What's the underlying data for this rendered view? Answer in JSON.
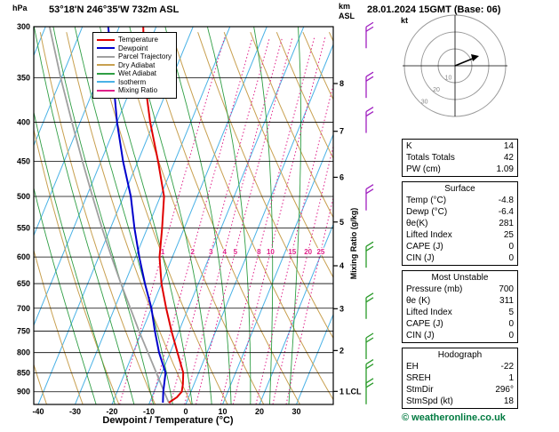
{
  "header": {
    "pressure_unit": "hPa",
    "station_title": "53°18'N 246°35'W 732m ASL",
    "datetime_title": "28.01.2024 15GMT (Base: 06)",
    "km_label": "km",
    "asl_label": "ASL"
  },
  "footer": {
    "copyright": "© weatheronline.co.uk"
  },
  "legend": {
    "items": [
      {
        "label": "Temperature",
        "color": "#e00000"
      },
      {
        "label": "Dewpoint",
        "color": "#0000cc"
      },
      {
        "label": "Parcel Trajectory",
        "color": "#a0a0a0"
      },
      {
        "label": "Dry Adiabat",
        "color": "#c8a050"
      },
      {
        "label": "Wet Adiabat",
        "color": "#2f9e44"
      },
      {
        "label": "Isotherm",
        "color": "#4ab2e6"
      },
      {
        "label": "Mixing Ratio",
        "color": "#e0218a"
      }
    ]
  },
  "axes": {
    "x_label": "Dewpoint / Temperature (°C)",
    "mixing_ratio_axis_label": "Mixing Ratio (g/kg)",
    "pressure_ticks": [
      300,
      350,
      400,
      450,
      500,
      550,
      600,
      650,
      700,
      750,
      800,
      850,
      900
    ],
    "temperature_ticks": [
      -40,
      -30,
      -20,
      -10,
      0,
      10,
      20,
      30
    ],
    "km_ticks": [
      8,
      7,
      6,
      5,
      4,
      3,
      2,
      1
    ],
    "lcl_label": "LCL"
  },
  "hodograph": {
    "unit_label": "kt",
    "ring_values": [
      10,
      20,
      30
    ]
  },
  "chart_data": {
    "type": "line",
    "subtype": "skew-t-log-p sounding",
    "title": "53°18'N 246°35'W 732m ASL",
    "xlabel": "Dewpoint / Temperature (°C)",
    "ylabel": "hPa",
    "xlim": [
      -40,
      35
    ],
    "pressure_top": 300,
    "pressure_bottom": 935,
    "isotherm_step": 10,
    "dry_adiabats_K": [
      240,
      250,
      260,
      270,
      280,
      290,
      300,
      310,
      320,
      330,
      340,
      350,
      360,
      370,
      380,
      390,
      400,
      410,
      420,
      430,
      440
    ],
    "wet_adiabats_C": [
      -20,
      -15,
      -10,
      -5,
      0,
      5,
      10,
      15,
      20,
      25,
      30
    ],
    "mixing_ratio_lines": [
      1,
      2,
      3,
      4,
      5,
      8,
      10,
      15,
      20,
      25
    ],
    "mixing_ratio_label_pressure": 590,
    "style": {
      "isotherm": "#4ab2e6",
      "dry_adiabat": "#c8a050",
      "wet_adiabat": "#2f9e44",
      "mixing_ratio": "#e0218a",
      "grid": "#000000"
    },
    "series": [
      {
        "name": "Parcel Trajectory",
        "color": "#a0a0a0",
        "width": 1.8,
        "points": [
          [
            930,
            -4.8
          ],
          [
            900,
            -7.3
          ],
          [
            850,
            -11.5
          ],
          [
            800,
            -16.0
          ],
          [
            750,
            -20.8
          ],
          [
            700,
            -25.7
          ],
          [
            650,
            -31.0
          ],
          [
            600,
            -36.5
          ],
          [
            550,
            -42.3
          ],
          [
            500,
            -48.4
          ],
          [
            450,
            -55.0
          ],
          [
            400,
            -62.2
          ],
          [
            350,
            -70.2
          ],
          [
            300,
            -78.9
          ]
        ]
      },
      {
        "name": "Dewpoint",
        "color": "#0000cc",
        "width": 2,
        "points": [
          [
            930,
            -6.4
          ],
          [
            900,
            -7.5
          ],
          [
            850,
            -9.0
          ],
          [
            800,
            -13.0
          ],
          [
            750,
            -16.5
          ],
          [
            700,
            -20.0
          ],
          [
            650,
            -24.5
          ],
          [
            600,
            -29.0
          ],
          [
            550,
            -33.5
          ],
          [
            500,
            -38.0
          ],
          [
            450,
            -44.0
          ],
          [
            400,
            -50.0
          ],
          [
            350,
            -56.0
          ],
          [
            300,
            -63.0
          ]
        ]
      },
      {
        "name": "Temperature",
        "color": "#e00000",
        "width": 2,
        "points": [
          [
            930,
            -4.8
          ],
          [
            915,
            -3.2
          ],
          [
            900,
            -2.5
          ],
          [
            880,
            -3.0
          ],
          [
            850,
            -4.2
          ],
          [
            800,
            -8.0
          ],
          [
            750,
            -12.0
          ],
          [
            700,
            -16.0
          ],
          [
            650,
            -20.0
          ],
          [
            600,
            -23.5
          ],
          [
            550,
            -26.0
          ],
          [
            500,
            -29.0
          ],
          [
            450,
            -34.5
          ],
          [
            400,
            -41.0
          ],
          [
            350,
            -47.5
          ],
          [
            300,
            -53.5
          ]
        ]
      }
    ],
    "winds": [
      {
        "pressure": 310,
        "color": "#a020c0"
      },
      {
        "pressure": 360,
        "color": "#a020c0"
      },
      {
        "pressure": 400,
        "color": "#a020c0"
      },
      {
        "pressure": 505,
        "color": "#a020c0"
      },
      {
        "pressure": 600,
        "color": "#2a9a2a"
      },
      {
        "pressure": 700,
        "color": "#2a9a2a"
      },
      {
        "pressure": 790,
        "color": "#2a9a2a"
      },
      {
        "pressure": 855,
        "color": "#2a9a2a"
      },
      {
        "pressure": 905,
        "color": "#2a9a2a"
      }
    ],
    "km_to_pressure": {
      "8": 356,
      "7": 411,
      "6": 472,
      "5": 540,
      "4": 616,
      "3": 701,
      "2": 795,
      "1": 899
    },
    "lcl_pressure": 899
  },
  "panel": {
    "indices": {
      "rows": [
        {
          "label": "K",
          "value": "14"
        },
        {
          "label": "Totals Totals",
          "value": "42"
        },
        {
          "label": "PW (cm)",
          "value": "1.09"
        }
      ]
    },
    "sections": [
      {
        "title": "Surface",
        "rows": [
          {
            "label": "Temp (°C)",
            "value": "-4.8"
          },
          {
            "label": "Dewp (°C)",
            "value": "-6.4"
          },
          {
            "label": "θe(K)",
            "value": "281"
          },
          {
            "label": "Lifted Index",
            "value": "25"
          },
          {
            "label": "CAPE (J)",
            "value": "0"
          },
          {
            "label": "CIN (J)",
            "value": "0"
          }
        ]
      },
      {
        "title": "Most Unstable",
        "rows": [
          {
            "label": "Pressure (mb)",
            "value": "700"
          },
          {
            "label": "θe (K)",
            "value": "311"
          },
          {
            "label": "Lifted Index",
            "value": "5"
          },
          {
            "label": "CAPE (J)",
            "value": "0"
          },
          {
            "label": "CIN (J)",
            "value": "0"
          }
        ]
      },
      {
        "title": "Hodograph",
        "rows": [
          {
            "label": "EH",
            "value": "-22"
          },
          {
            "label": "SREH",
            "value": "1"
          },
          {
            "label": "StmDir",
            "value": "296°"
          },
          {
            "label": "StmSpd (kt)",
            "value": "18"
          }
        ]
      }
    ]
  }
}
